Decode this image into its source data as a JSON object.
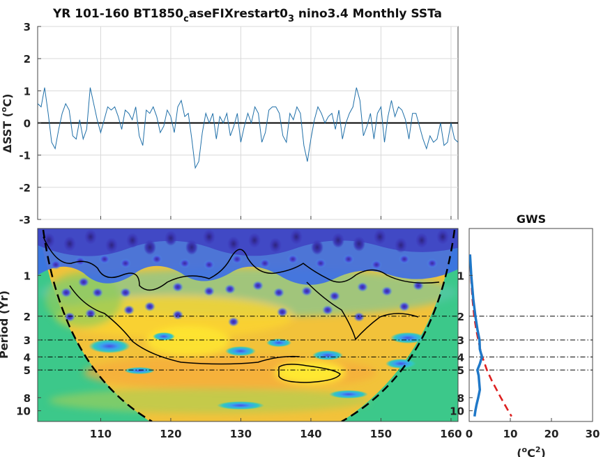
{
  "figure": {
    "title_main": "YR 101-160 BT1850",
    "title_sub1": "c",
    "title_mid": "aseFIXrestart0",
    "title_sub2": "3",
    "title_tail": " nino3.4 Monthly SSTa"
  },
  "chart_data": [
    {
      "type": "line",
      "title": "YR 101-160 BT1850_caseFIXrestart0_3 nino3.4 Monthly SSTa",
      "ylabel_prefix": "ΔSST (",
      "ylabel_sup": "o",
      "ylabel_suffix": "C)",
      "xlim": [
        101,
        161
      ],
      "ylim": [
        -3,
        3
      ],
      "yticks": [
        -3,
        -2,
        -1,
        0,
        1,
        2,
        3
      ],
      "xticks": [
        110,
        120,
        130,
        140,
        150,
        160
      ],
      "grid": true,
      "line_color": "#1f6fa8",
      "zero_line_color": "#000000",
      "series": [
        {
          "x": [
            101.0,
            101.5,
            102.0,
            102.5,
            103.0,
            103.5,
            104.0,
            104.5,
            105.0,
            105.5,
            106.0,
            106.5,
            107.0,
            107.5,
            108.0,
            108.5,
            109.0,
            109.5,
            110.0,
            110.5,
            111.0,
            111.5,
            112.0,
            112.5,
            113.0,
            113.5,
            114.0,
            114.5,
            115.0,
            115.5,
            116.0,
            116.5,
            117.0,
            117.5,
            118.0,
            118.5,
            119.0,
            119.5,
            120.0,
            120.5,
            121.0,
            121.5,
            122.0,
            122.5,
            123.0,
            123.5,
            124.0,
            124.5,
            125.0,
            125.5,
            126.0,
            126.5,
            127.0,
            127.5,
            128.0,
            128.5,
            129.0,
            129.5,
            130.0,
            130.5,
            131.0,
            131.5,
            132.0,
            132.5,
            133.0,
            133.5,
            134.0,
            134.5,
            135.0,
            135.5,
            136.0,
            136.5,
            137.0,
            137.5,
            138.0,
            138.5,
            139.0,
            139.5,
            140.0,
            140.5,
            141.0,
            141.5,
            142.0,
            142.5,
            143.0,
            143.5,
            144.0,
            144.5,
            145.0,
            145.5,
            146.0,
            146.5,
            147.0,
            147.5,
            148.0,
            148.5,
            149.0,
            149.5,
            150.0,
            150.5,
            151.0,
            151.5,
            152.0,
            152.5,
            153.0,
            153.5,
            154.0,
            154.5,
            155.0,
            155.5,
            156.0,
            156.5,
            157.0,
            157.5,
            158.0,
            158.5,
            159.0,
            159.5,
            160.0,
            160.5,
            161.0
          ],
          "y": [
            0.6,
            0.5,
            1.1,
            0.3,
            -0.6,
            -0.8,
            -0.2,
            0.3,
            0.6,
            0.4,
            -0.4,
            -0.5,
            0.1,
            -0.5,
            -0.2,
            1.1,
            0.6,
            0.1,
            -0.3,
            0.1,
            0.5,
            0.4,
            0.5,
            0.2,
            -0.2,
            0.4,
            0.3,
            0.1,
            0.5,
            -0.4,
            -0.7,
            0.4,
            0.3,
            0.5,
            0.2,
            -0.3,
            -0.1,
            0.4,
            0.2,
            -0.3,
            0.5,
            0.7,
            0.2,
            0.3,
            -0.5,
            -1.4,
            -1.2,
            -0.3,
            0.3,
            0.0,
            0.3,
            -0.5,
            0.2,
            0.0,
            0.3,
            -0.4,
            -0.1,
            0.3,
            -0.6,
            -0.1,
            0.3,
            0.0,
            0.5,
            0.3,
            -0.6,
            -0.3,
            0.4,
            0.5,
            0.5,
            0.3,
            -0.4,
            -0.6,
            0.3,
            0.1,
            0.5,
            0.3,
            -0.7,
            -1.2,
            -0.5,
            0.1,
            0.5,
            0.3,
            0.0,
            0.2,
            0.3,
            -0.2,
            0.4,
            -0.5,
            0.0,
            0.3,
            0.5,
            1.1,
            0.7,
            -0.4,
            -0.1,
            0.3,
            -0.5,
            0.3,
            0.5,
            -0.6,
            0.2,
            0.7,
            0.2,
            0.5,
            0.4,
            0.1,
            -0.5,
            0.3,
            0.3,
            -0.1,
            -0.5,
            -0.8,
            -0.4,
            -0.6,
            -0.5,
            0.0,
            -0.7,
            -0.6,
            0.0,
            -0.5,
            -0.6
          ]
        }
      ]
    },
    {
      "type": "heatmap",
      "ylabel": "Period (Yr)",
      "xlim": [
        101,
        161
      ],
      "xticks": [
        110,
        120,
        130,
        140,
        150,
        160
      ],
      "yticks": [
        1,
        2,
        3,
        4,
        5,
        8,
        10
      ],
      "reference_periods": [
        2,
        3,
        4,
        5
      ],
      "colormap": "parula",
      "cone_of_influence": "dashed"
    },
    {
      "type": "line",
      "title": "GWS",
      "xlabel_prefix": "(",
      "xlabel_sup1": "o",
      "xlabel_mid": "C",
      "xlabel_sup2": "2",
      "xlabel_suffix": ")",
      "xlim": [
        0,
        30
      ],
      "xticks": [
        0,
        10,
        20,
        30
      ],
      "yticks": [
        1,
        2,
        3,
        4,
        5,
        8,
        10
      ],
      "reference_periods": [
        2,
        3,
        4,
        5
      ],
      "series": [
        {
          "style": "solid",
          "color": "#1f78c8",
          "period": [
            0.7,
            1.0,
            1.5,
            2.0,
            2.5,
            3.0,
            3.5,
            4.0,
            4.5,
            5.0,
            5.5,
            6.0,
            7.0,
            8.0,
            9.0,
            10.0,
            11.0
          ],
          "power": [
            0.2,
            0.5,
            1.0,
            1.5,
            2.0,
            2.5,
            2.6,
            3.1,
            2.6,
            2.0,
            2.3,
            2.4,
            2.6,
            2.2,
            1.8,
            1.5,
            1.3
          ]
        },
        {
          "style": "dashed",
          "color": "#dd2020",
          "period": [
            0.7,
            1.0,
            1.5,
            2.0,
            2.5,
            3.0,
            3.5,
            4.0,
            5.0,
            6.0,
            8.0,
            10.0,
            11.0
          ],
          "power": [
            0.2,
            0.4,
            0.8,
            1.2,
            1.7,
            2.2,
            2.7,
            3.2,
            4.3,
            5.5,
            7.7,
            9.5,
            10.3
          ]
        }
      ]
    }
  ]
}
